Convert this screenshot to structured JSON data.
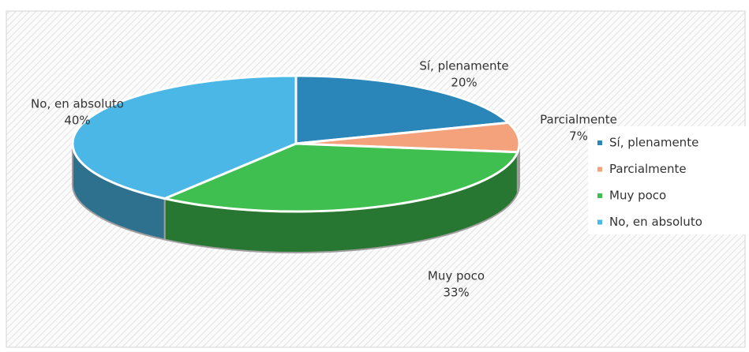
{
  "chart_data": {
    "type": "pie3d",
    "categories": [
      "Sí, plenamente",
      "Parcialmente",
      "Muy poco",
      "No, en absoluto"
    ],
    "values": [
      20,
      7,
      33,
      40
    ],
    "value_labels": [
      "20%",
      "7%",
      "33%",
      "40%"
    ],
    "colors": [
      "#2a86b8",
      "#f3a27c",
      "#3fbf4f",
      "#4ab7e6"
    ],
    "legend": "right"
  }
}
